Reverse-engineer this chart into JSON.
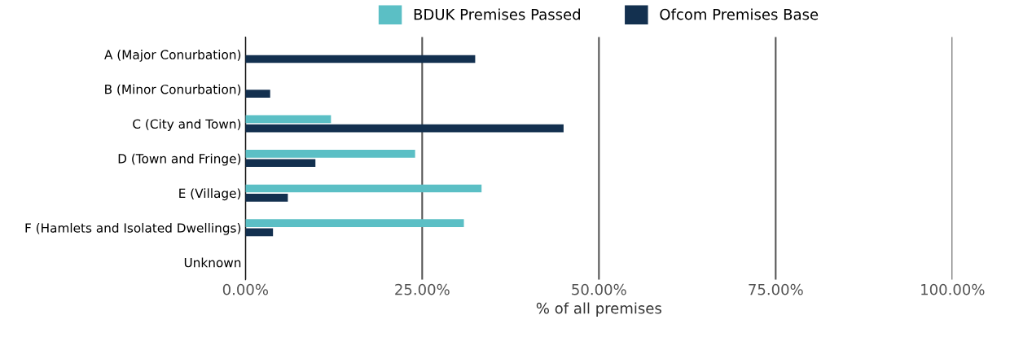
{
  "chart_data": {
    "type": "bar",
    "orientation": "horizontal",
    "xlabel": "% of all premises",
    "categories": [
      "A (Major Conurbation)",
      "B (Minor Conurbation)",
      "C (City and Town)",
      "D (Town and Fringe)",
      "E (Village)",
      "F (Hamlets and Isolated Dwellings)",
      "Unknown"
    ],
    "series": [
      {
        "name": "BDUK Premises Passed",
        "color": "#5bbfc5",
        "values": [
          null,
          null,
          12.1,
          24.0,
          33.4,
          30.9,
          null
        ]
      },
      {
        "name": "Ofcom Premises Base",
        "color": "#13304f",
        "values": [
          32.5,
          3.5,
          45.0,
          9.9,
          6.0,
          3.9,
          null
        ]
      }
    ],
    "xlim": [
      0,
      100
    ],
    "xticks": [
      {
        "value": 0,
        "label": "0.00%"
      },
      {
        "value": 25,
        "label": "25.00%"
      },
      {
        "value": 50,
        "label": "50.00%"
      },
      {
        "value": 75,
        "label": "75.00%"
      },
      {
        "value": 100,
        "label": "100.00%"
      }
    ],
    "grid": "x",
    "legend": "top"
  }
}
